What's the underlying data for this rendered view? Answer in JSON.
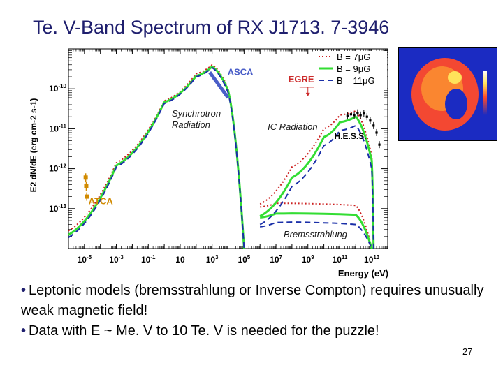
{
  "slide": {
    "title": "Te. V-Band Spectrum of RX J1713. 7-3946",
    "bullets": [
      "Leptonic models (bremsstrahlung or Inverse Compton) requires unusually weak magnetic field!",
      "Data with E ~ Me. V to 10 Te. V is needed for the puzzle!"
    ],
    "page_number": "27"
  },
  "colors": {
    "title": "#1f1f6e",
    "b7_red": "#cc2020",
    "b9_green": "#33dd33",
    "b11_blue": "#1a2fa8",
    "annotation_red": "#cc2a2a",
    "asca_blue": "#4a5ec8",
    "atca_orange": "#d18a00",
    "dark_label": "#1a1a1a"
  },
  "chart_data": {
    "type": "line",
    "xlabel": "Energy (eV)",
    "ylabel": "E2 dN/dE (erg cm-2 s-1)",
    "xscale": "log",
    "yscale": "log",
    "xlim": [
      1e-06,
      100000000000000.0
    ],
    "ylim": [
      1e-14,
      1e-09
    ],
    "x_ticks": [
      "10-5",
      "10-3",
      "10-1",
      "10",
      "103",
      "105",
      "107",
      "109",
      "1011",
      "1013"
    ],
    "y_ticks": [
      "10-10",
      "10-11",
      "10-12",
      "10-13"
    ],
    "legend": {
      "placement": "top-right",
      "entries": [
        "B = 7μG",
        "B = 9μG",
        "B = 11μG"
      ]
    },
    "series": [
      {
        "name": "B = 7μG",
        "style": "dotted",
        "synchrotron": {
          "x": [
            1e-06,
            0.001,
            1,
            100.0,
            1000.0,
            10000.0,
            100000.0
          ],
          "y": [
            2.8e-14,
            1.4e-12,
            5e-11,
            2.4e-10,
            4e-10,
            1e-10,
            1e-14
          ]
        },
        "ic": {
          "x": [
            1000000.0,
            100000000.0,
            10000000000.0,
            100000000000.0,
            1000000000000.0,
            10000000000000.0,
            13000000000000.0
          ],
          "y": [
            1.3e-13,
            1.1e-12,
            1e-11,
            2.2e-11,
            2.8e-11,
            2.1e-12,
            1e-14
          ]
        },
        "brems": {
          "x": [
            1000000.0,
            10000000.0,
            100000000.0,
            10000000000.0,
            1000000000000.0,
            10000000000000.0
          ],
          "y": [
            1.1e-13,
            1.35e-13,
            1.35e-13,
            1.3e-13,
            1.2e-13,
            1e-14
          ]
        }
      },
      {
        "name": "B = 9μG",
        "style": "solid",
        "synchrotron": {
          "x": [
            1e-06,
            0.001,
            1,
            100.0,
            1000.0,
            10000.0,
            100000.0
          ],
          "y": [
            2.2e-14,
            1.2e-12,
            4.6e-11,
            2.1e-10,
            3.6e-10,
            9e-11,
            1e-14
          ]
        },
        "ic": {
          "x": [
            1000000.0,
            100000000.0,
            10000000000.0,
            100000000000.0,
            1000000000000.0,
            10000000000000.0,
            13000000000000.0
          ],
          "y": [
            6.5e-14,
            6e-13,
            6.2e-12,
            1.45e-11,
            2e-11,
            1.6e-12,
            1e-14
          ]
        },
        "brems": {
          "x": [
            1000000.0,
            10000000.0,
            100000000.0,
            10000000000.0,
            1000000000000.0,
            10000000000000.0
          ],
          "y": [
            6e-14,
            7.5e-14,
            7.6e-14,
            7.4e-14,
            7e-14,
            1e-14
          ]
        }
      },
      {
        "name": "B = 11μG",
        "style": "dashed",
        "synchrotron": {
          "x": [
            1e-06,
            0.001,
            1,
            100.0,
            1000.0,
            10000.0,
            100000.0
          ],
          "y": [
            1.9e-14,
            1.1e-12,
            4.3e-11,
            2e-10,
            3.4e-10,
            8e-11,
            1e-14
          ]
        },
        "ic": {
          "x": [
            1000000.0,
            100000000.0,
            10000000000.0,
            100000000000.0,
            1000000000000.0,
            10000000000000.0,
            13000000000000.0
          ],
          "y": [
            4e-14,
            3.6e-13,
            3.8e-12,
            9e-12,
            1.2e-11,
            1e-12,
            1e-14
          ]
        },
        "brems": {
          "x": [
            1000000.0,
            10000000.0,
            100000000.0,
            10000000000.0,
            1000000000000.0,
            10000000000000.0
          ],
          "y": [
            3.5e-14,
            4.5e-14,
            4.6e-14,
            4.4e-14,
            4e-14,
            1e-14
          ]
        }
      }
    ],
    "data_sets": {
      "asca": {
        "label": "ASCA",
        "x": [
          700.0,
          10000.0
        ],
        "y": [
          2.6e-10,
          6e-11
        ]
      },
      "atca": {
        "label": "ATCA",
        "points": [
          {
            "x": 1.2e-05,
            "y": 6e-13
          },
          {
            "x": 1.3e-05,
            "y": 3.6e-13
          },
          {
            "x": 1.4e-05,
            "y": 2e-13
          }
        ]
      },
      "hess": {
        "label": "H.E.S.S.",
        "points": [
          {
            "x": 300000000000.0,
            "y": 2.1e-11
          },
          {
            "x": 500000000000.0,
            "y": 2.3e-11
          },
          {
            "x": 800000000000.0,
            "y": 2.2e-11
          },
          {
            "x": 1300000000000.0,
            "y": 2.5e-11
          },
          {
            "x": 2000000000000.0,
            "y": 2.2e-11
          },
          {
            "x": 3200000000000.0,
            "y": 2.4e-11
          },
          {
            "x": 5000000000000.0,
            "y": 2e-11
          },
          {
            "x": 8000000000000.0,
            "y": 1.6e-11
          },
          {
            "x": 13000000000000.0,
            "y": 1.2e-11
          },
          {
            "x": 20000000000000.0,
            "y": 8e-12
          },
          {
            "x": 30000000000000.0,
            "y": 4e-12
          }
        ]
      },
      "egret": {
        "label": "EGRET",
        "x": 1000000000.0,
        "y": 1.1e-10
      }
    },
    "annotations": {
      "synchrotron": "Synchrotron Radiation",
      "ic": "IC Radiation",
      "brems": "Bremsstrahlung"
    }
  }
}
